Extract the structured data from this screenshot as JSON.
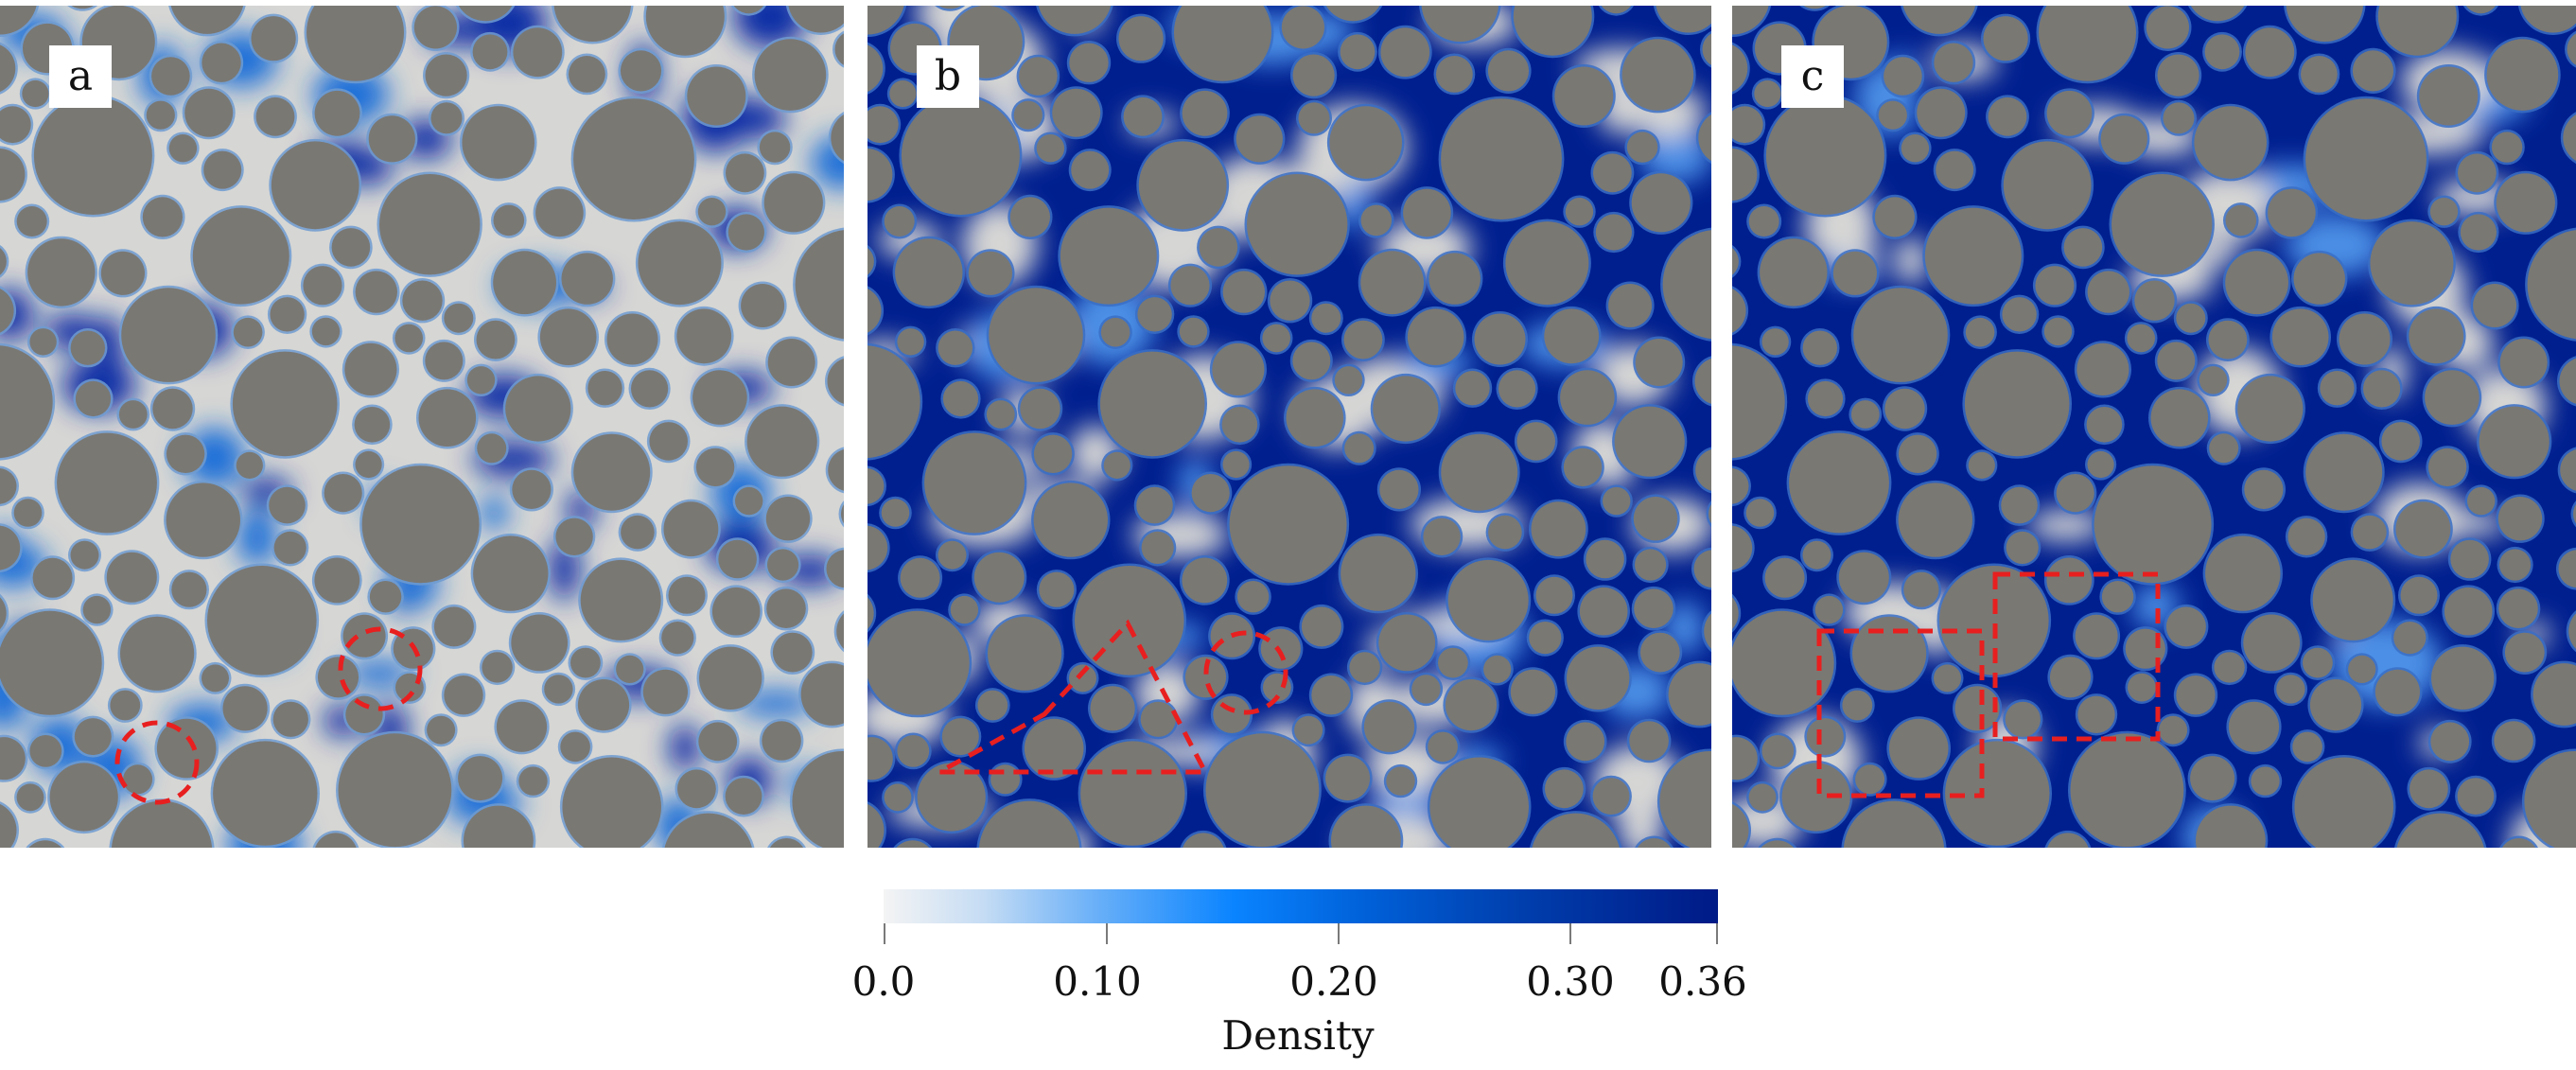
{
  "panels": [
    {
      "label": "a",
      "annotation_shapes": [
        "circle",
        "circle"
      ]
    },
    {
      "label": "b",
      "annotation_shapes": [
        "triangle",
        "circle"
      ]
    },
    {
      "label": "c",
      "annotation_shapes": [
        "square",
        "square"
      ]
    }
  ],
  "colorbar": {
    "title": "Density",
    "min": 0.0,
    "max": 0.36,
    "ticks": [
      "0.0",
      "0.10",
      "0.20",
      "0.30",
      "0.36"
    ],
    "colors": {
      "low": "#f4f4f4",
      "mid": "#0a84ff",
      "high": "#001a86"
    }
  },
  "colors": {
    "particle": "#7a7873",
    "particle_edge": "#6f9bd0",
    "light_fluid": "#d6d6d4",
    "dense_fluid": "#001f8f",
    "annotation": "#e81f1f"
  }
}
